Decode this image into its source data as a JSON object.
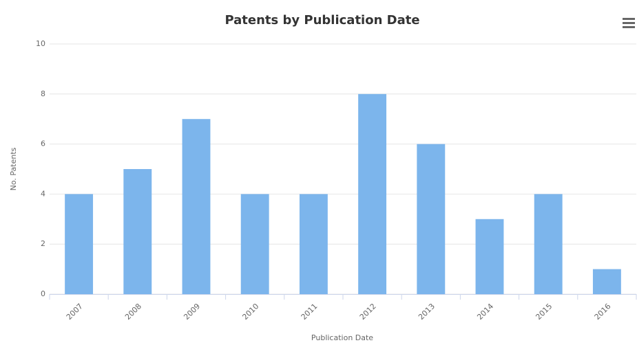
{
  "chart_data": {
    "type": "bar",
    "title": "Patents by Publication Date",
    "x_label": "Publication Date",
    "y_label": "No. Patents",
    "categories": [
      "2007",
      "2008",
      "2009",
      "2010",
      "2011",
      "2012",
      "2013",
      "2014",
      "2015",
      "2016"
    ],
    "values": [
      4,
      5,
      7,
      4,
      4,
      8,
      6,
      3,
      4,
      1
    ],
    "color": "#7cb5ec",
    "ylim": [
      0,
      10
    ],
    "yticks": [
      0,
      2,
      4,
      6,
      8,
      10
    ],
    "grid": true
  }
}
